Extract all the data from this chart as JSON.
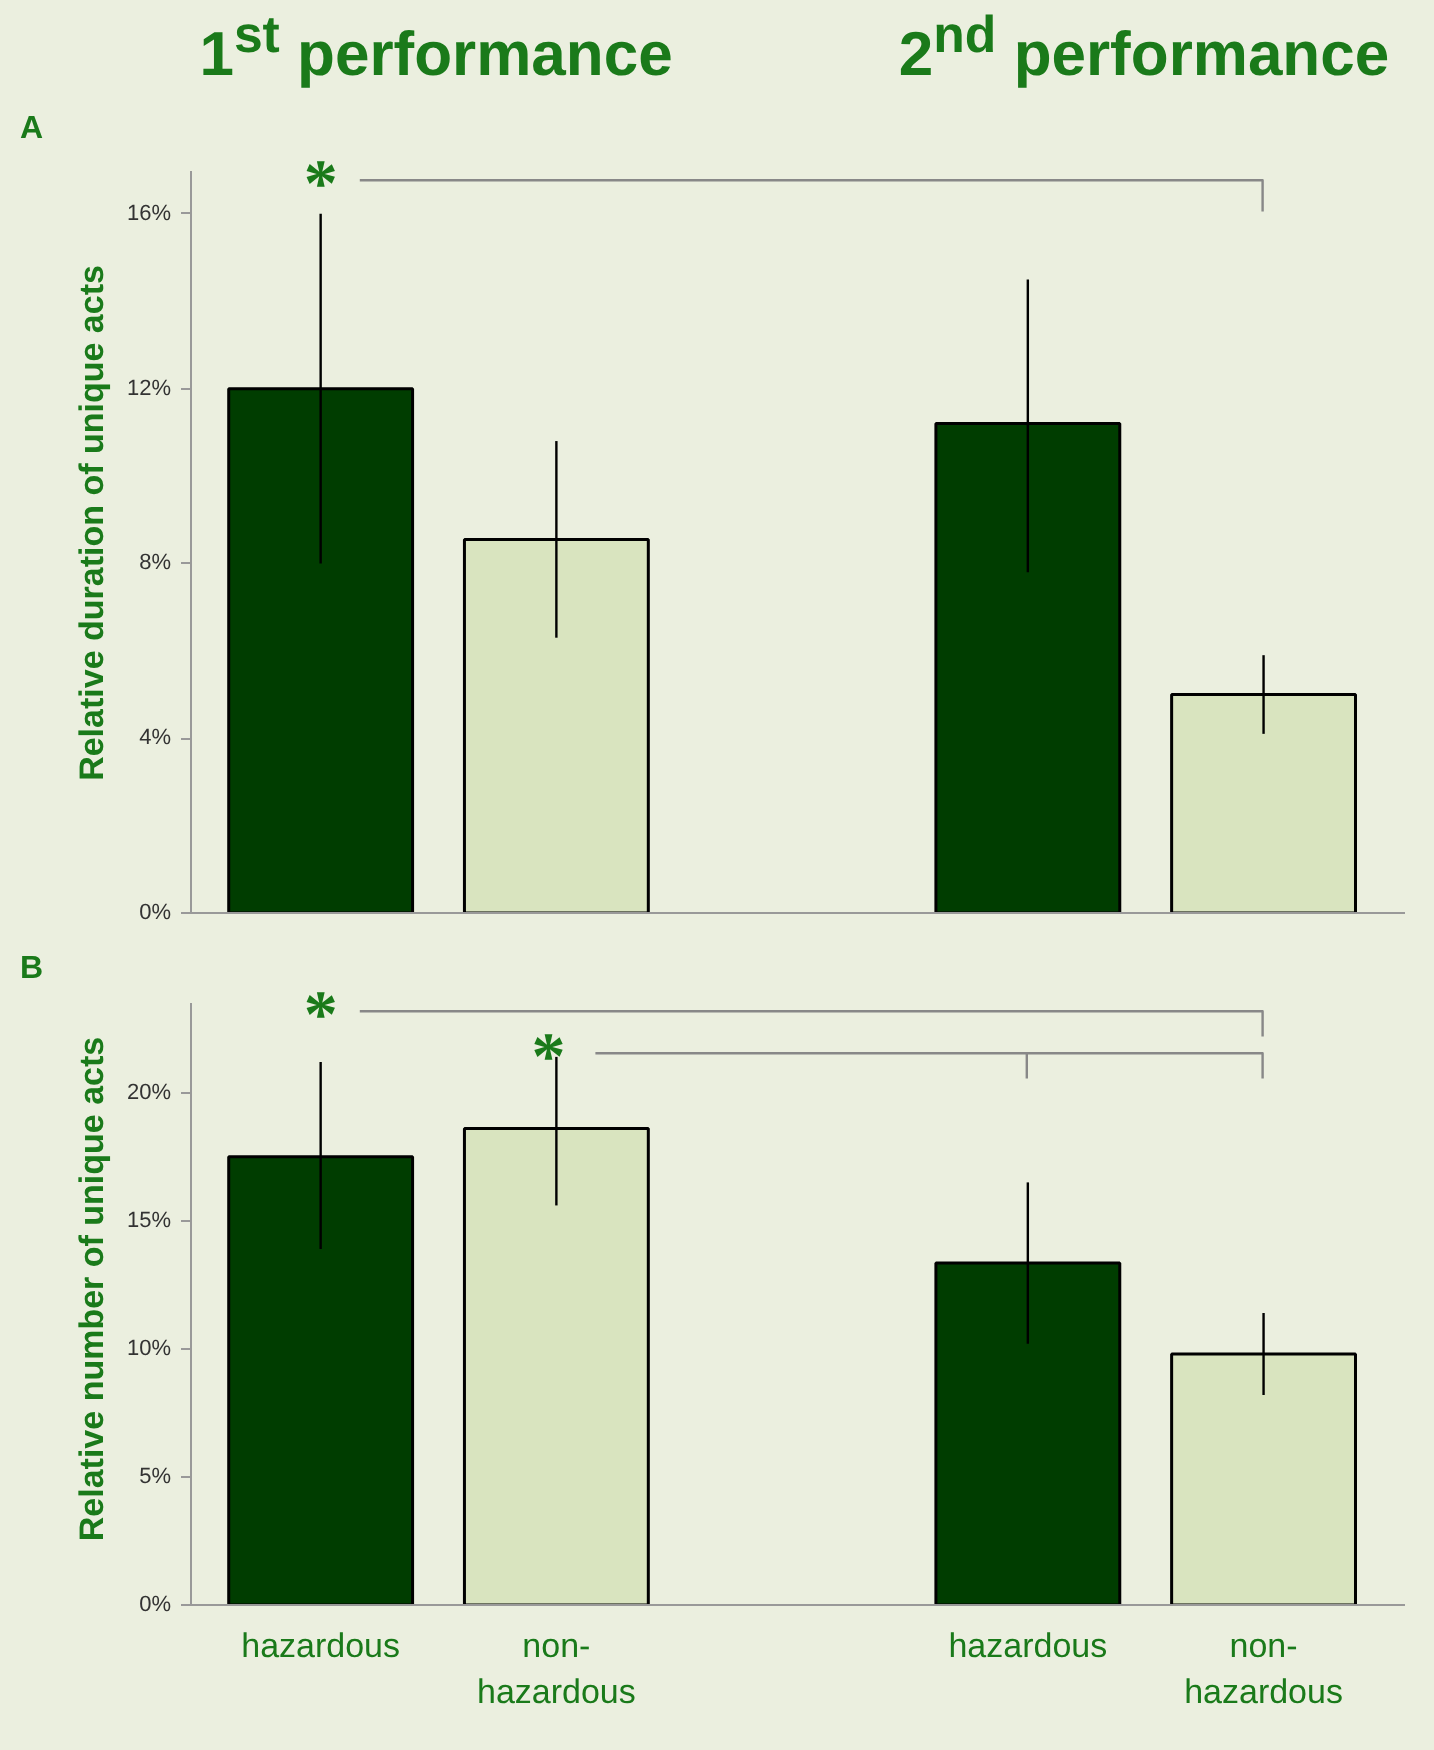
{
  "chart_data": [
    {
      "type": "bar",
      "ylabel": "Relative duration of unique acts",
      "categories": [
        null,
        null,
        null,
        null
      ],
      "values": [
        12.0,
        8.55,
        11.2,
        5.0
      ],
      "colors": [
        "#003d00",
        "#d9e4bf",
        "#003d00",
        "#d9e4bf"
      ],
      "errors": [
        [
          8.0,
          16.0
        ],
        [
          6.3,
          10.8
        ],
        [
          7.8,
          14.5
        ],
        [
          4.1,
          5.9
        ]
      ],
      "ylim": [
        0,
        17
      ],
      "yticks": [
        {
          "value": 0,
          "label": "0%"
        },
        {
          "value": 4,
          "label": "4%"
        },
        {
          "value": 8,
          "label": "8%"
        },
        {
          "value": 12,
          "label": "12%"
        },
        {
          "value": 16,
          "label": "16%"
        }
      ],
      "tick_labels": "y",
      "grid": false,
      "annotations": [
        "A",
        "1$^{st}$ performance",
        "2$^{nd}$ performance",
        "*"
      ]
    },
    {
      "type": "bar",
      "ylabel": "Relative number of unique acts",
      "categories": [
        "hazardous",
        "non-hazardous",
        "hazardous",
        "non-hazardous"
      ],
      "values": [
        17.5,
        18.6,
        13.35,
        9.8
      ],
      "colors": [
        "#003d00",
        "#d9e4bf",
        "#003d00",
        "#d9e4bf"
      ],
      "errors": [
        [
          13.9,
          21.2
        ],
        [
          15.6,
          21.4
        ],
        [
          10.2,
          16.5
        ],
        [
          8.2,
          11.4
        ]
      ],
      "ylim": [
        0,
        23.5
      ],
      "yticks": [
        {
          "value": 0,
          "label": "0%"
        },
        {
          "value": 5,
          "label": "5%"
        },
        {
          "value": 10,
          "label": "10%"
        },
        {
          "value": 15,
          "label": "15%"
        },
        {
          "value": 20,
          "label": "20%"
        }
      ],
      "grid": false,
      "annotations": [
        "B",
        "*",
        "*"
      ]
    }
  ]
}
